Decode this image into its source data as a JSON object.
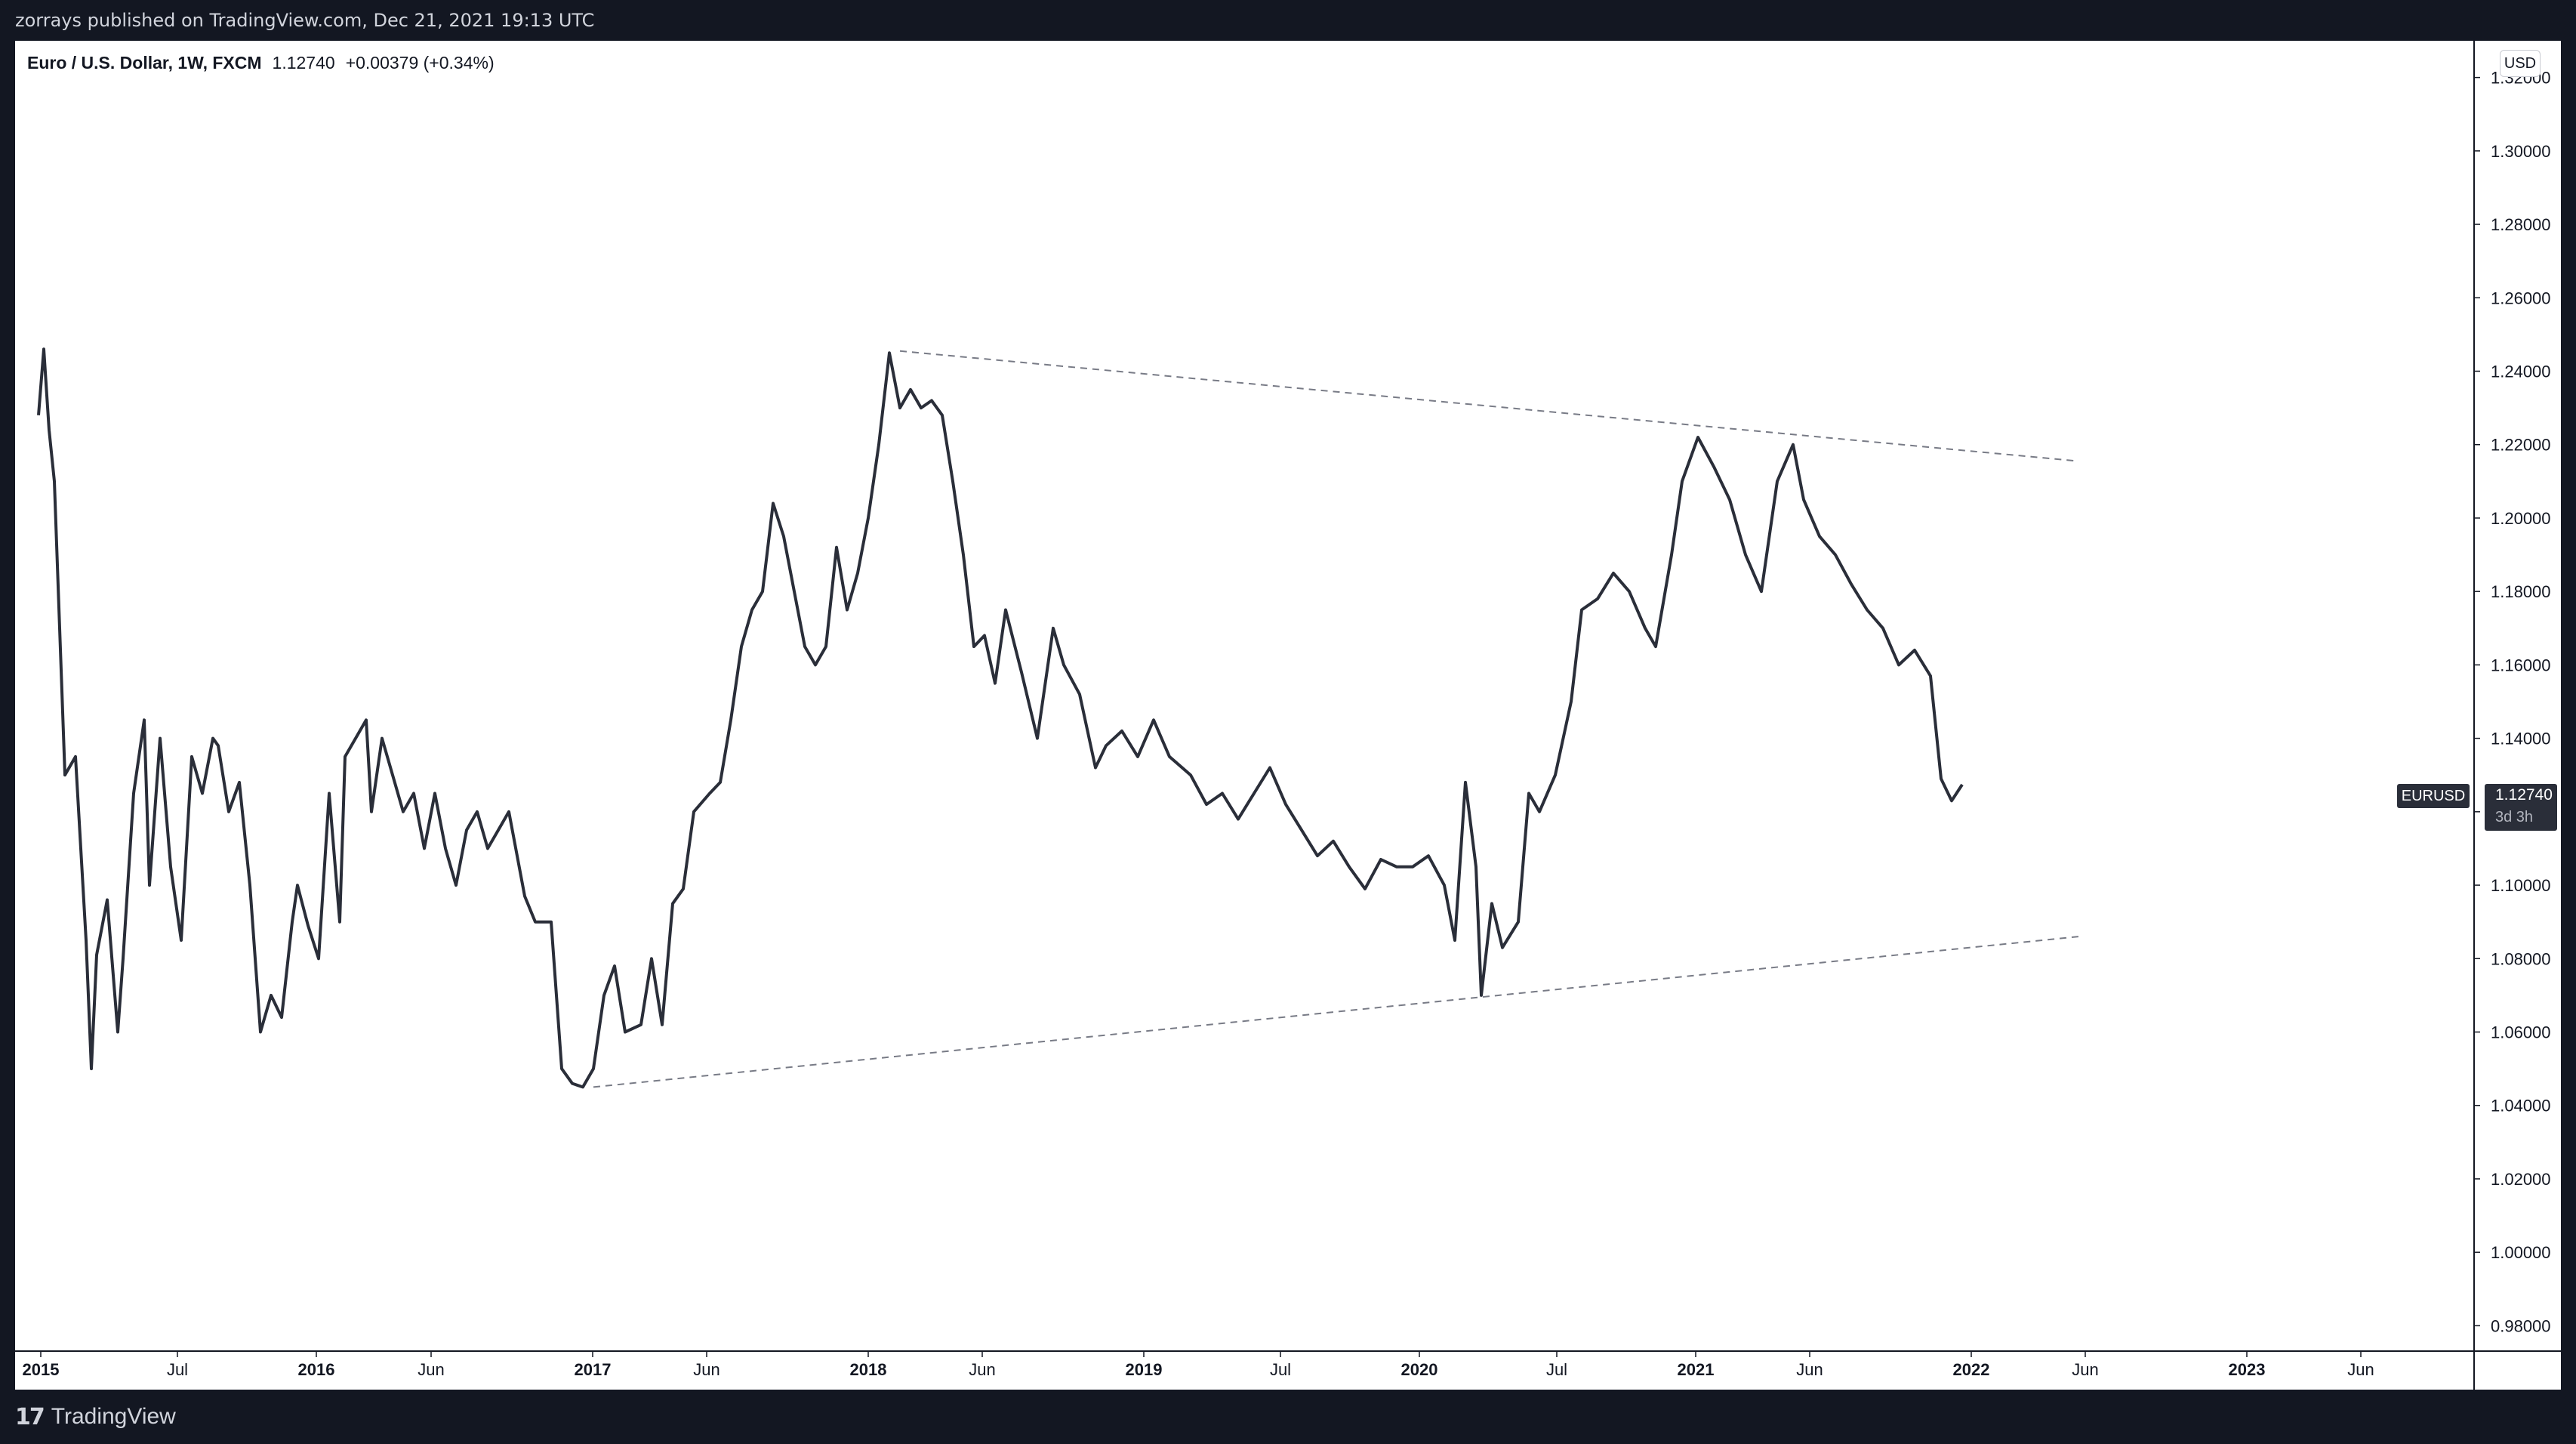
{
  "header": {
    "published": "zorrays published on TradingView.com, Dec 21, 2021 19:13 UTC"
  },
  "footer": {
    "brand": "TradingView",
    "logo_mark": "17"
  },
  "legend": {
    "symbol": "Euro / U.S. Dollar, 1W, FXCM",
    "last": "1.12740",
    "change": "+0.00379 (+0.34%)"
  },
  "price_scale": {
    "currency": "USD",
    "ticker_tag": "EURUSD",
    "last_label": "1.12740",
    "countdown": "3d 3h"
  },
  "colors": {
    "line": "#2a2e39",
    "trendline": "#787b86",
    "grid_border": "#131722",
    "tag_bg": "#2a2e39"
  },
  "chart_data": {
    "type": "line",
    "title": "Euro / U.S. Dollar, 1W, FXCM",
    "ylim": [
      0.97,
      1.33
    ],
    "yticks": [
      0.98,
      1.0,
      1.02,
      1.04,
      1.06,
      1.08,
      1.1,
      1.12,
      1.14,
      1.16,
      1.18,
      1.2,
      1.22,
      1.24,
      1.26,
      1.28,
      1.3,
      1.32
    ],
    "ytick_labels": [
      "0.98000",
      "1.00000",
      "1.02000",
      "1.04000",
      "1.06000",
      "1.08000",
      "1.10000",
      "1.12000",
      "1.14000",
      "1.16000",
      "1.18000",
      "1.20000",
      "1.22000",
      "1.24000",
      "1.26000",
      "1.28000",
      "1.30000",
      "1.32000"
    ],
    "xlim": [
      "2015-01-01",
      "2023-11-01"
    ],
    "xticks": [
      {
        "date": "2015-01-01",
        "label": "2015"
      },
      {
        "date": "2015-07-01",
        "label": "Jul"
      },
      {
        "date": "2016-01-01",
        "label": "2016"
      },
      {
        "date": "2016-06-01",
        "label": "Jun"
      },
      {
        "date": "2017-01-01",
        "label": "2017"
      },
      {
        "date": "2017-06-01",
        "label": "Jun"
      },
      {
        "date": "2018-01-01",
        "label": "2018"
      },
      {
        "date": "2018-06-01",
        "label": "Jun"
      },
      {
        "date": "2019-01-01",
        "label": "2019"
      },
      {
        "date": "2019-07-01",
        "label": "Jul"
      },
      {
        "date": "2020-01-01",
        "label": "2020"
      },
      {
        "date": "2020-07-01",
        "label": "Jul"
      },
      {
        "date": "2021-01-01",
        "label": "2021"
      },
      {
        "date": "2021-06-01",
        "label": "Jun"
      },
      {
        "date": "2022-01-01",
        "label": "2022"
      },
      {
        "date": "2022-06-01",
        "label": "Jun"
      },
      {
        "date": "2023-01-01",
        "label": "2023"
      },
      {
        "date": "2023-06-01",
        "label": "Jun"
      }
    ],
    "grid": false,
    "series": [
      {
        "x": [
          "2014-12-29",
          "2015-01-05",
          "2015-01-12",
          "2015-01-19",
          "2015-02-02",
          "2015-02-16",
          "2015-03-02",
          "2015-03-09",
          "2015-03-16",
          "2015-03-30",
          "2015-04-13",
          "2015-04-20",
          "2015-05-04",
          "2015-05-18",
          "2015-05-25",
          "2015-06-08",
          "2015-06-22",
          "2015-07-06",
          "2015-07-20",
          "2015-08-03",
          "2015-08-17",
          "2015-08-24",
          "2015-09-07",
          "2015-09-21",
          "2015-10-05",
          "2015-10-19",
          "2015-11-02",
          "2015-11-16",
          "2015-11-30",
          "2015-12-07",
          "2015-12-21",
          "2016-01-04",
          "2016-01-18",
          "2016-02-01",
          "2016-02-08",
          "2016-02-22",
          "2016-03-07",
          "2016-03-14",
          "2016-03-28",
          "2016-04-11",
          "2016-04-25",
          "2016-05-09",
          "2016-05-23",
          "2016-06-06",
          "2016-06-20",
          "2016-07-04",
          "2016-07-18",
          "2016-08-01",
          "2016-08-15",
          "2016-08-29",
          "2016-09-12",
          "2016-10-03",
          "2016-10-17",
          "2016-11-07",
          "2016-11-21",
          "2016-12-05",
          "2016-12-19",
          "2017-01-02",
          "2017-01-16",
          "2017-01-30",
          "2017-02-13",
          "2017-03-06",
          "2017-03-20",
          "2017-04-03",
          "2017-04-17",
          "2017-05-01",
          "2017-05-15",
          "2017-06-05",
          "2017-06-19",
          "2017-07-03",
          "2017-07-17",
          "2017-07-31",
          "2017-08-14",
          "2017-08-28",
          "2017-09-11",
          "2017-09-25",
          "2017-10-09",
          "2017-10-23",
          "2017-11-06",
          "2017-11-20",
          "2017-12-04",
          "2017-12-18",
          "2018-01-01",
          "2018-01-15",
          "2018-01-29",
          "2018-02-12",
          "2018-02-26",
          "2018-03-12",
          "2018-03-26",
          "2018-04-09",
          "2018-04-23",
          "2018-05-07",
          "2018-05-21",
          "2018-06-04",
          "2018-06-18",
          "2018-07-02",
          "2018-07-23",
          "2018-08-13",
          "2018-09-03",
          "2018-09-17",
          "2018-10-08",
          "2018-10-29",
          "2018-11-12",
          "2018-12-03",
          "2018-12-24",
          "2019-01-14",
          "2019-02-04",
          "2019-03-04",
          "2019-03-25",
          "2019-04-15",
          "2019-05-06",
          "2019-05-27",
          "2019-06-17",
          "2019-07-08",
          "2019-07-29",
          "2019-08-19",
          "2019-09-09",
          "2019-09-30",
          "2019-10-21",
          "2019-11-11",
          "2019-12-02",
          "2019-12-23",
          "2020-01-13",
          "2020-02-03",
          "2020-02-17",
          "2020-03-02",
          "2020-03-16",
          "2020-03-23",
          "2020-04-06",
          "2020-04-20",
          "2020-05-11",
          "2020-05-25",
          "2020-06-08",
          "2020-06-29",
          "2020-07-20",
          "2020-08-03",
          "2020-08-24",
          "2020-09-14",
          "2020-10-05",
          "2020-10-26",
          "2020-11-09",
          "2020-11-30",
          "2020-12-14",
          "2021-01-04",
          "2021-01-25",
          "2021-02-15",
          "2021-03-08",
          "2021-03-29",
          "2021-04-19",
          "2021-05-10",
          "2021-05-24",
          "2021-06-14",
          "2021-07-05",
          "2021-07-26",
          "2021-08-16",
          "2021-09-06",
          "2021-09-27",
          "2021-10-18",
          "2021-11-08",
          "2021-11-22",
          "2021-12-06",
          "2021-12-20"
        ],
        "y": [
          1.228,
          1.246,
          1.224,
          1.21,
          1.13,
          1.135,
          1.085,
          1.05,
          1.081,
          1.096,
          1.06,
          1.08,
          1.125,
          1.145,
          1.1,
          1.14,
          1.105,
          1.085,
          1.135,
          1.125,
          1.14,
          1.138,
          1.12,
          1.128,
          1.1,
          1.06,
          1.07,
          1.064,
          1.09,
          1.1,
          1.089,
          1.08,
          1.125,
          1.09,
          1.135,
          1.14,
          1.145,
          1.12,
          1.14,
          1.13,
          1.12,
          1.125,
          1.11,
          1.125,
          1.11,
          1.1,
          1.115,
          1.12,
          1.11,
          1.115,
          1.12,
          1.097,
          1.09,
          1.09,
          1.05,
          1.046,
          1.045,
          1.05,
          1.07,
          1.078,
          1.06,
          1.062,
          1.08,
          1.062,
          1.095,
          1.099,
          1.12,
          1.125,
          1.128,
          1.145,
          1.165,
          1.175,
          1.18,
          1.204,
          1.195,
          1.18,
          1.165,
          1.16,
          1.165,
          1.192,
          1.175,
          1.185,
          1.2,
          1.22,
          1.245,
          1.23,
          1.235,
          1.23,
          1.232,
          1.228,
          1.21,
          1.19,
          1.165,
          1.168,
          1.155,
          1.175,
          1.158,
          1.14,
          1.17,
          1.16,
          1.152,
          1.132,
          1.138,
          1.142,
          1.135,
          1.145,
          1.135,
          1.13,
          1.122,
          1.125,
          1.118,
          1.125,
          1.132,
          1.122,
          1.115,
          1.108,
          1.112,
          1.105,
          1.099,
          1.107,
          1.105,
          1.105,
          1.108,
          1.1,
          1.085,
          1.128,
          1.105,
          1.07,
          1.095,
          1.083,
          1.09,
          1.125,
          1.12,
          1.13,
          1.15,
          1.175,
          1.178,
          1.185,
          1.18,
          1.17,
          1.165,
          1.19,
          1.21,
          1.222,
          1.214,
          1.205,
          1.19,
          1.18,
          1.21,
          1.22,
          1.205,
          1.195,
          1.19,
          1.182,
          1.175,
          1.17,
          1.16,
          1.164,
          1.157,
          1.129,
          1.123,
          1.1274
        ]
      }
    ],
    "trendlines": [
      {
        "style": "dashed",
        "from": {
          "date": "2018-02-12",
          "price": 1.2455
        },
        "to": {
          "date": "2022-05-23",
          "price": 1.2155
        }
      },
      {
        "style": "dashed",
        "from": {
          "date": "2017-01-02",
          "price": 1.045
        },
        "to": {
          "date": "2022-05-23",
          "price": 1.086
        }
      }
    ]
  }
}
